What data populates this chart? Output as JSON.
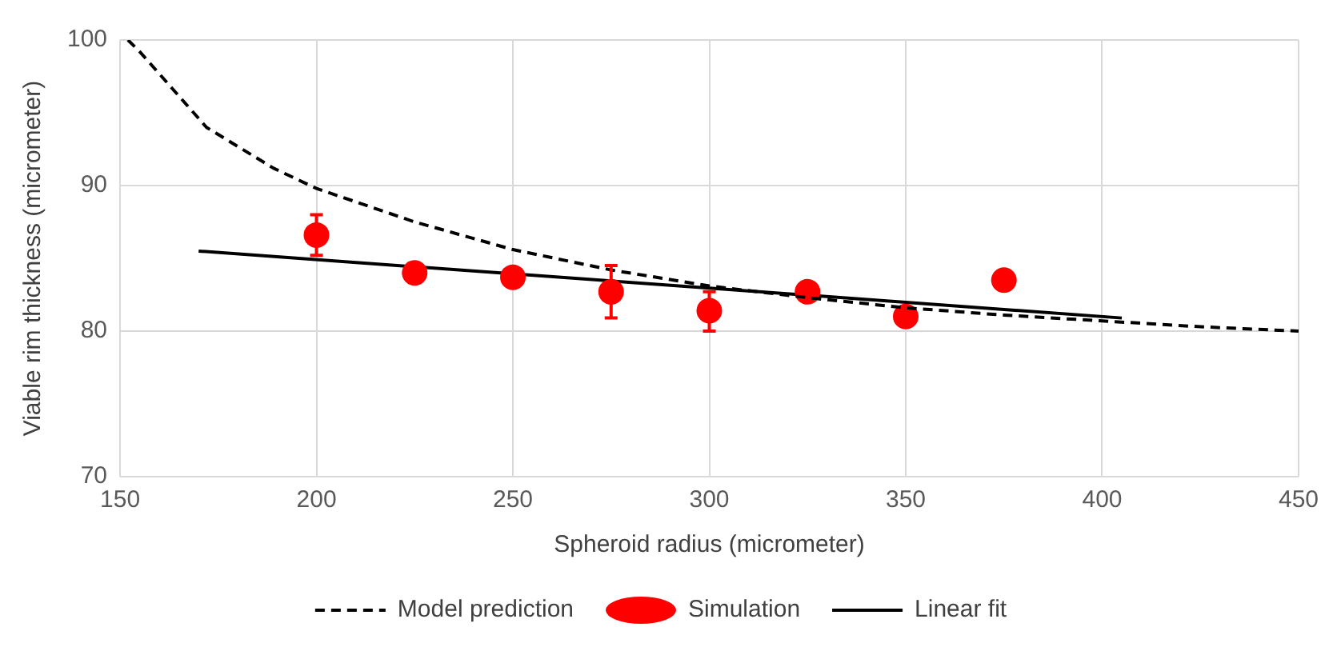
{
  "chart_data": {
    "type": "scatter",
    "xlabel": "Spheroid radius (micrometer)",
    "ylabel": "Viable rim thickness (micrometer)",
    "xlim": [
      150,
      450
    ],
    "xticks": [
      150,
      200,
      250,
      300,
      350,
      400,
      450
    ],
    "ylim": [
      70,
      100
    ],
    "yticks": [
      70,
      80,
      90,
      100
    ],
    "grid": true,
    "legend": "bottom",
    "series": [
      {
        "name": "Model prediction",
        "type": "line",
        "line_style": "dashed",
        "marker": "none",
        "color": "#000000",
        "x": [
          152,
          155,
          172,
          189,
          200,
          225,
          250,
          275,
          300,
          325,
          350,
          375,
          400,
          425,
          450
        ],
        "values": [
          100,
          99.2,
          94.0,
          91.2,
          89.8,
          87.5,
          85.6,
          84.2,
          83.1,
          82.3,
          81.6,
          81.1,
          80.7,
          80.3,
          80.0
        ]
      },
      {
        "name": "Simulation",
        "type": "scatter",
        "marker": "circle",
        "color": "#ff0000",
        "x": [
          200,
          225,
          250,
          275,
          300,
          325,
          350,
          375
        ],
        "values": [
          86.6,
          84.0,
          83.7,
          82.7,
          81.4,
          82.7,
          81.0,
          83.5
        ],
        "errors": [
          [
            85.2,
            88.0
          ],
          null,
          null,
          [
            80.9,
            84.5
          ],
          [
            80.0,
            82.7
          ],
          null,
          null,
          null
        ]
      },
      {
        "name": "Linear fit",
        "type": "line",
        "line_style": "solid",
        "marker": "none",
        "color": "#000000",
        "x": [
          170,
          405
        ],
        "values": [
          85.5,
          80.9
        ]
      }
    ]
  }
}
